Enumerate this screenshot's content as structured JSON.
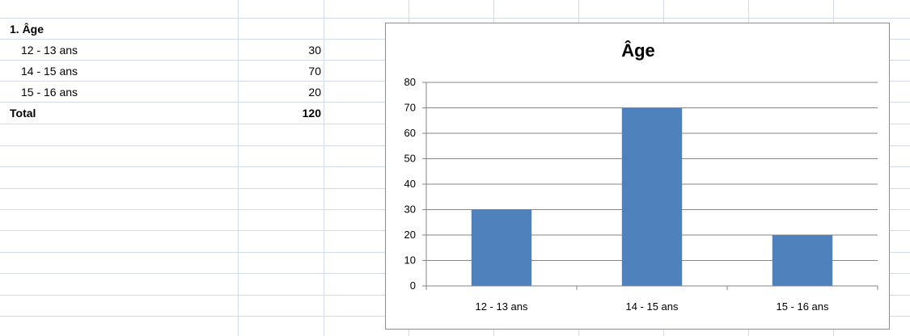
{
  "table": {
    "header": "1. Âge",
    "rows": [
      {
        "label": "12 - 13 ans",
        "value": "30"
      },
      {
        "label": "14 - 15 ans",
        "value": "70"
      },
      {
        "label": "15 - 16 ans",
        "value": "20"
      }
    ],
    "total": {
      "label": "Total",
      "value": "120"
    }
  },
  "chart_data": {
    "type": "bar",
    "title": "Âge",
    "categories": [
      "12 - 13 ans",
      "14 - 15 ans",
      "15 - 16 ans"
    ],
    "values": [
      30,
      70,
      20
    ],
    "ylim": [
      0,
      80
    ],
    "yticks": [
      0,
      10,
      20,
      30,
      40,
      50,
      60,
      70,
      80
    ],
    "grid": true,
    "legend": false,
    "bar_color": "#4f81bd"
  }
}
